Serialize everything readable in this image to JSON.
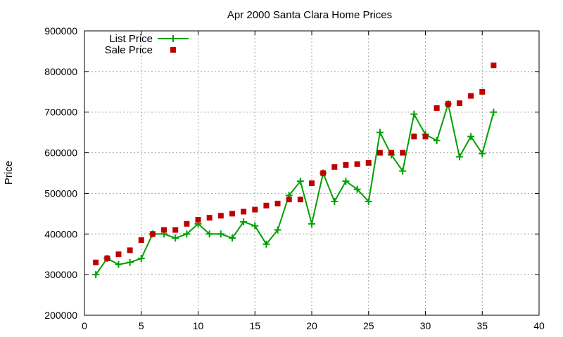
{
  "colors": {
    "list_price": "#00a000",
    "sale_price": "#c00000",
    "grid": "#a0a0a0",
    "axis": "#000000"
  },
  "chart_data": {
    "type": "line",
    "title": "Apr 2000 Santa Clara Home Prices",
    "xlabel": "",
    "ylabel": "Price",
    "xlim": [
      0,
      40
    ],
    "ylim": [
      200000,
      900000
    ],
    "x_ticks": [
      "0",
      "5",
      "10",
      "15",
      "20",
      "25",
      "30",
      "35",
      "40"
    ],
    "y_ticks": [
      "200000",
      "300000",
      "400000",
      "500000",
      "600000",
      "700000",
      "800000",
      "900000"
    ],
    "grid": true,
    "legend_position": "top-left",
    "series": [
      {
        "name": "List Price",
        "style": "line+cross",
        "x": [
          1,
          2,
          3,
          4,
          5,
          6,
          7,
          8,
          9,
          10,
          11,
          12,
          13,
          14,
          15,
          16,
          17,
          18,
          19,
          20,
          21,
          22,
          23,
          24,
          25,
          26,
          27,
          28,
          29,
          30,
          31,
          32,
          33,
          34,
          35,
          36
        ],
        "y": [
          300000,
          340000,
          325000,
          330000,
          340000,
          400000,
          400000,
          390000,
          400000,
          425000,
          400000,
          400000,
          390000,
          430000,
          420000,
          375000,
          410000,
          495000,
          530000,
          425000,
          550000,
          480000,
          530000,
          510000,
          480000,
          650000,
          595000,
          555000,
          695000,
          645000,
          630000,
          720000,
          590000,
          640000,
          598000,
          700000
        ]
      },
      {
        "name": "Sale Price",
        "style": "square",
        "x": [
          1,
          2,
          3,
          4,
          5,
          6,
          7,
          8,
          9,
          10,
          11,
          12,
          13,
          14,
          15,
          16,
          17,
          18,
          19,
          20,
          21,
          22,
          23,
          24,
          25,
          26,
          27,
          28,
          29,
          30,
          31,
          32,
          33,
          34,
          35,
          36
        ],
        "y": [
          330000,
          340000,
          350000,
          360000,
          385000,
          400000,
          410000,
          410000,
          425000,
          435000,
          440000,
          445000,
          450000,
          455000,
          460000,
          470000,
          475000,
          485000,
          485000,
          525000,
          550000,
          565000,
          570000,
          572000,
          575000,
          600000,
          600000,
          600000,
          640000,
          640000,
          710000,
          720000,
          722000,
          740000,
          750000,
          815000
        ]
      }
    ]
  }
}
